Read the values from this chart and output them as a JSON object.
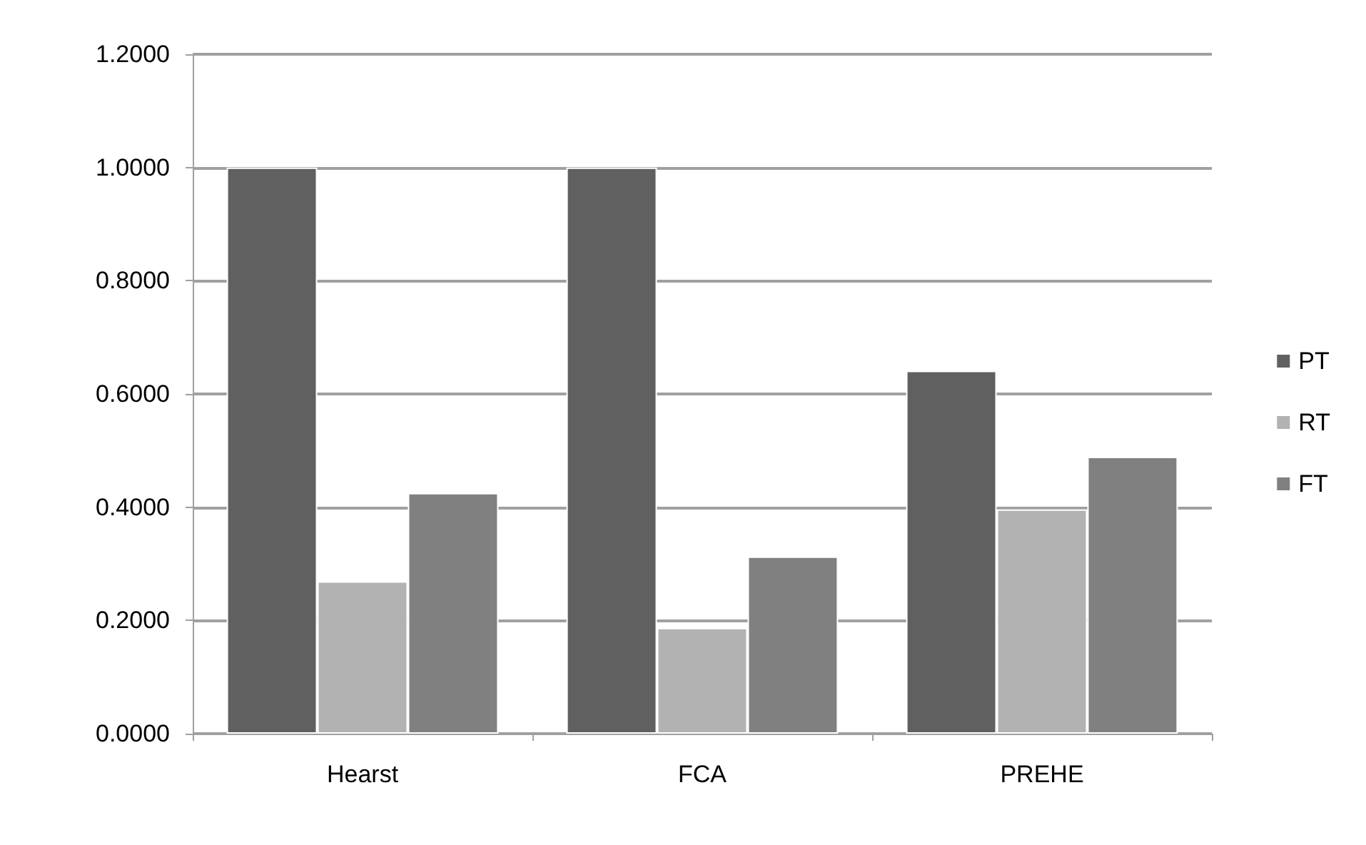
{
  "chart_data": {
    "type": "bar",
    "categories": [
      "Hearst",
      "FCA",
      "PREHE"
    ],
    "series": [
      {
        "name": "PT",
        "color": "#606060",
        "values": [
          1.0,
          1.0,
          0.641
        ]
      },
      {
        "name": "RT",
        "color": "#b2b2b2",
        "values": [
          0.269,
          0.187,
          0.396
        ]
      },
      {
        "name": "FT",
        "color": "#808080",
        "values": [
          0.425,
          0.313,
          0.489
        ]
      }
    ],
    "ylim": [
      0,
      1.2
    ],
    "yticks": [
      {
        "value": 0,
        "label": "0.0000"
      },
      {
        "value": 0.2,
        "label": "0.2000"
      },
      {
        "value": 0.4,
        "label": "0.4000"
      },
      {
        "value": 0.6,
        "label": "0.6000"
      },
      {
        "value": 0.8,
        "label": "0.8000"
      },
      {
        "value": 1.0,
        "label": "1.0000"
      },
      {
        "value": 1.2,
        "label": "1.2000"
      }
    ],
    "grid": "y",
    "legend": "right"
  }
}
